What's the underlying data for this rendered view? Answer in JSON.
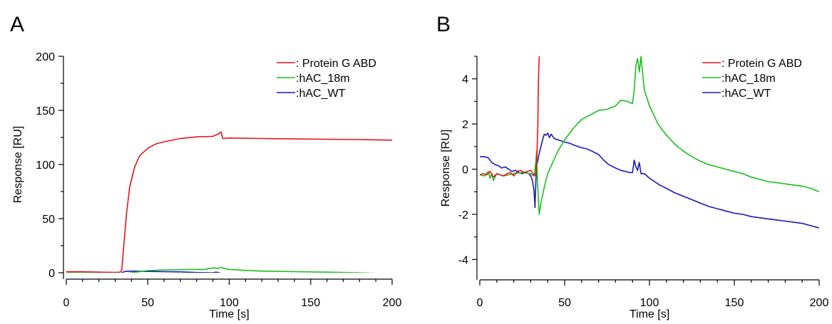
{
  "chart_data": [
    {
      "panel_label": "A",
      "type": "line",
      "xlabel": "Time [s]",
      "ylabel": "Response [RU]",
      "xlim": [
        0,
        200
      ],
      "ylim": [
        0,
        200
      ],
      "xticks": [
        0,
        50,
        100,
        150,
        200
      ],
      "yticks": [
        0,
        50,
        100,
        150,
        200
      ],
      "legend_position": "top-right",
      "series": [
        {
          "name": ": Protein G ABD",
          "color": "#e8141c",
          "points": [
            [
              0,
              1
            ],
            [
              10,
              1
            ],
            [
              20,
              0.5
            ],
            [
              30,
              0.3
            ],
            [
              33,
              0.5
            ],
            [
              34,
              2
            ],
            [
              35,
              20
            ],
            [
              37,
              55
            ],
            [
              39,
              80
            ],
            [
              42,
              98
            ],
            [
              45,
              108
            ],
            [
              50,
              115
            ],
            [
              55,
              119
            ],
            [
              60,
              121
            ],
            [
              70,
              124
            ],
            [
              80,
              125.5
            ],
            [
              90,
              126
            ],
            [
              93,
              128
            ],
            [
              95,
              130
            ],
            [
              96,
              124
            ],
            [
              100,
              124.5
            ],
            [
              120,
              124
            ],
            [
              150,
              123.5
            ],
            [
              180,
              123
            ],
            [
              200,
              122.5
            ]
          ]
        },
        {
          "name": "hAC_18m",
          "color": "#1bbf1b",
          "points": [
            [
              0,
              0.2
            ],
            [
              20,
              0
            ],
            [
              30,
              -0.3
            ],
            [
              33,
              -1
            ],
            [
              34,
              -2
            ],
            [
              36,
              -1
            ],
            [
              40,
              0
            ],
            [
              50,
              2
            ],
            [
              60,
              2.5
            ],
            [
              75,
              3
            ],
            [
              85,
              3
            ],
            [
              90,
              4.5
            ],
            [
              93,
              4
            ],
            [
              95,
              5
            ],
            [
              97,
              3.8
            ],
            [
              100,
              3
            ],
            [
              110,
              2.2
            ],
            [
              120,
              1.5
            ],
            [
              140,
              1
            ],
            [
              160,
              0.5
            ],
            [
              180,
              0
            ],
            [
              200,
              -1
            ]
          ]
        },
        {
          "name": "hAC_WT",
          "color": "#1818c0",
          "points": [
            [
              0,
              0.6
            ],
            [
              20,
              0.2
            ],
            [
              30,
              0
            ],
            [
              32,
              -0.5
            ],
            [
              33,
              -1.5
            ],
            [
              34,
              0
            ],
            [
              36,
              1.2
            ],
            [
              40,
              1.5
            ],
            [
              50,
              1.2
            ],
            [
              60,
              1
            ],
            [
              70,
              0.8
            ],
            [
              80,
              0.2
            ],
            [
              90,
              0
            ],
            [
              92,
              0.5
            ],
            [
              95,
              -0.5
            ],
            [
              110,
              -1
            ],
            [
              130,
              -1.7
            ],
            [
              150,
              -2
            ],
            [
              170,
              -2.2
            ],
            [
              200,
              -2.6
            ]
          ]
        }
      ]
    },
    {
      "panel_label": "B",
      "type": "line",
      "xlabel": "Time [s]",
      "ylabel": "Response [RU]",
      "xlim": [
        0,
        200
      ],
      "ylim": [
        -4.9,
        5
      ],
      "xticks": [
        0,
        50,
        100,
        150,
        200
      ],
      "yticks": [
        -4,
        -2,
        0,
        2,
        4
      ],
      "legend_position": "top-right",
      "series": [
        {
          "name": ": Protein G ABD",
          "color": "#e8141c",
          "points": [
            [
              0,
              -0.25
            ],
            [
              2,
              -0.2
            ],
            [
              4,
              -0.25
            ],
            [
              6,
              -0.1
            ],
            [
              8,
              -0.35
            ],
            [
              10,
              -0.2
            ],
            [
              12,
              -0.25
            ],
            [
              14,
              -0.3
            ],
            [
              16,
              -0.2
            ],
            [
              18,
              -0.15
            ],
            [
              20,
              -0.3
            ],
            [
              22,
              -0.1
            ],
            [
              24,
              -0.05
            ],
            [
              26,
              -0.15
            ],
            [
              28,
              -0.1
            ],
            [
              30,
              -0.05
            ],
            [
              31,
              -0.15
            ],
            [
              32,
              -0.3
            ],
            [
              33,
              -0.2
            ],
            [
              33.6,
              0.5
            ],
            [
              34.2,
              2
            ],
            [
              34.6,
              4
            ],
            [
              35,
              5
            ]
          ]
        },
        {
          "name": "hAC_18m",
          "color": "#1bbf1b",
          "points": [
            [
              0,
              -0.25
            ],
            [
              3,
              -0.3
            ],
            [
              5,
              -0.1
            ],
            [
              6,
              -0.4
            ],
            [
              7,
              -0.2
            ],
            [
              8,
              -0.5
            ],
            [
              10,
              -0.2
            ],
            [
              14,
              -0.3
            ],
            [
              20,
              -0.2
            ],
            [
              25,
              -0.15
            ],
            [
              30,
              -0.2
            ],
            [
              32,
              -0.3
            ],
            [
              33,
              0.3
            ],
            [
              33.5,
              0.8
            ],
            [
              34,
              -0.6
            ],
            [
              35,
              -2
            ],
            [
              36,
              -1.5
            ],
            [
              38,
              -0.8
            ],
            [
              40,
              -0.2
            ],
            [
              43,
              0.3
            ],
            [
              46,
              0.8
            ],
            [
              50,
              1.3
            ],
            [
              55,
              1.8
            ],
            [
              60,
              2.2
            ],
            [
              65,
              2.4
            ],
            [
              70,
              2.6
            ],
            [
              75,
              2.65
            ],
            [
              80,
              2.8
            ],
            [
              83,
              3.05
            ],
            [
              87,
              3.0
            ],
            [
              90,
              2.9
            ],
            [
              91,
              3.5
            ],
            [
              92,
              4.6
            ],
            [
              93,
              4.9
            ],
            [
              94,
              4.3
            ],
            [
              95,
              5
            ],
            [
              96,
              4.2
            ],
            [
              97,
              3.5
            ],
            [
              100,
              2.8
            ],
            [
              105,
              2.0
            ],
            [
              110,
              1.5
            ],
            [
              115,
              1.1
            ],
            [
              120,
              0.8
            ],
            [
              125,
              0.55
            ],
            [
              130,
              0.35
            ],
            [
              135,
              0.2
            ],
            [
              140,
              0.1
            ],
            [
              145,
              0.0
            ],
            [
              150,
              -0.1
            ],
            [
              155,
              -0.2
            ],
            [
              160,
              -0.35
            ],
            [
              165,
              -0.45
            ],
            [
              170,
              -0.55
            ],
            [
              175,
              -0.6
            ],
            [
              180,
              -0.65
            ],
            [
              185,
              -0.7
            ],
            [
              190,
              -0.75
            ],
            [
              195,
              -0.85
            ],
            [
              200,
              -1.0
            ]
          ]
        },
        {
          "name": "hAC_WT",
          "color": "#1818c0",
          "points": [
            [
              0,
              0.55
            ],
            [
              3,
              0.55
            ],
            [
              5,
              0.5
            ],
            [
              7,
              0.3
            ],
            [
              9,
              0.2
            ],
            [
              11,
              0.15
            ],
            [
              13,
              0.05
            ],
            [
              15,
              0.1
            ],
            [
              17,
              0.0
            ],
            [
              19,
              -0.1
            ],
            [
              21,
              -0.05
            ],
            [
              23,
              -0.15
            ],
            [
              25,
              -0.2
            ],
            [
              27,
              -0.15
            ],
            [
              29,
              -0.2
            ],
            [
              30,
              -0.3
            ],
            [
              31,
              -0.5
            ],
            [
              32,
              -1.0
            ],
            [
              32.5,
              -1.7
            ],
            [
              33,
              -0.6
            ],
            [
              33.5,
              0.2
            ],
            [
              34,
              0.3
            ],
            [
              35,
              0.7
            ],
            [
              36,
              1.0
            ],
            [
              37,
              1.3
            ],
            [
              38,
              1.55
            ],
            [
              39,
              1.5
            ],
            [
              40,
              1.6
            ],
            [
              41,
              1.4
            ],
            [
              42,
              1.55
            ],
            [
              44,
              1.35
            ],
            [
              46,
              1.3
            ],
            [
              48,
              1.25
            ],
            [
              50,
              1.2
            ],
            [
              53,
              1.15
            ],
            [
              56,
              1.05
            ],
            [
              60,
              0.95
            ],
            [
              63,
              0.9
            ],
            [
              66,
              0.8
            ],
            [
              70,
              0.65
            ],
            [
              73,
              0.4
            ],
            [
              76,
              0.2
            ],
            [
              80,
              0.05
            ],
            [
              83,
              -0.05
            ],
            [
              86,
              -0.1
            ],
            [
              88,
              -0.15
            ],
            [
              90,
              -0.15
            ],
            [
              91,
              0.4
            ],
            [
              92,
              0.1
            ],
            [
              93,
              -0.05
            ],
            [
              94,
              0.3
            ],
            [
              95,
              -0.2
            ],
            [
              97,
              -0.2
            ],
            [
              100,
              -0.4
            ],
            [
              103,
              -0.55
            ],
            [
              106,
              -0.7
            ],
            [
              110,
              -0.85
            ],
            [
              115,
              -1.05
            ],
            [
              120,
              -1.2
            ],
            [
              125,
              -1.35
            ],
            [
              130,
              -1.5
            ],
            [
              135,
              -1.65
            ],
            [
              140,
              -1.75
            ],
            [
              145,
              -1.85
            ],
            [
              150,
              -1.95
            ],
            [
              155,
              -2.0
            ],
            [
              160,
              -2.1
            ],
            [
              165,
              -2.15
            ],
            [
              170,
              -2.2
            ],
            [
              175,
              -2.25
            ],
            [
              180,
              -2.3
            ],
            [
              185,
              -2.35
            ],
            [
              190,
              -2.4
            ],
            [
              195,
              -2.5
            ],
            [
              200,
              -2.6
            ]
          ]
        }
      ]
    }
  ]
}
